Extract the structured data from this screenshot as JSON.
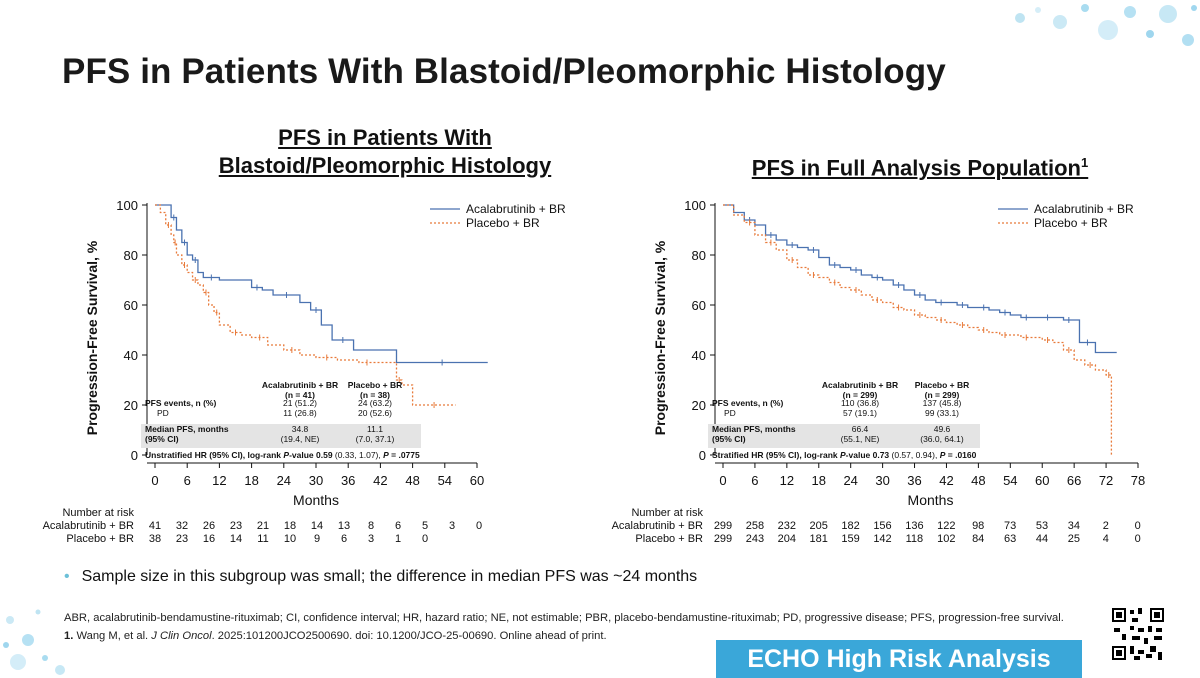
{
  "slide": {
    "title": "PFS in Patients With Blastoid/Pleomorphic Histology",
    "bullet": "Sample size in this subgroup was small; the difference in median PFS was ~24 months",
    "footnote1": "ABR, acalabrutinib-bendamustine-rituximab; CI, confidence interval; HR, hazard ratio; NE, not estimable; PBR, placebo-bendamustine-rituximab; PD, progressive disease; PFS, progression-free survival.",
    "ref_num": "1.",
    "ref_authors": " Wang M, et al. ",
    "ref_journal": "J Clin Oncol",
    "ref_rest": ". 2025:101200JCO2500690. doi: 10.1200/JCO-25-00690. Online ahead of print.",
    "badge": "ECHO High Risk Analysis"
  },
  "colors": {
    "acala": "#4a72b0",
    "placebo": "#e87a3a",
    "badge": "#3aa7d9",
    "accent": "#6cc0d8"
  },
  "icons": [
    "qr-code-icon",
    "bubble-decoration"
  ],
  "chart_data": [
    {
      "type": "line",
      "title_lines": [
        "PFS in Patients With",
        "Blastoid/Pleomorphic Histology"
      ],
      "xlabel": "Months",
      "ylabel": "Progression-Free Survival, %",
      "xlim": [
        0,
        60
      ],
      "ylim": [
        0,
        100
      ],
      "xticks": [
        0,
        6,
        12,
        18,
        24,
        30,
        36,
        42,
        48,
        54,
        60
      ],
      "yticks": [
        0,
        20,
        40,
        60,
        80,
        100
      ],
      "grid": false,
      "legend_position": "top-right",
      "series": [
        {
          "name": "Acalabrutinib + BR",
          "x": [
            0,
            2,
            3,
            4,
            5,
            6,
            7,
            8,
            9,
            12,
            18,
            20,
            22,
            27,
            29,
            31,
            33,
            37,
            45,
            62
          ],
          "y": [
            100,
            100,
            95,
            90,
            85,
            80,
            78,
            73,
            71,
            70,
            67,
            66,
            64,
            61,
            58,
            52,
            46,
            42,
            37,
            37
          ]
        },
        {
          "name": "Placebo + BR",
          "x": [
            0,
            1,
            2,
            3,
            3.5,
            4,
            5,
            6,
            7,
            8,
            9,
            10,
            11,
            12,
            14,
            16,
            18,
            21,
            24,
            27,
            30,
            34,
            38,
            41,
            45,
            46,
            48,
            56
          ],
          "y": [
            100,
            97,
            92,
            88,
            85,
            80,
            76,
            73,
            70,
            68,
            65,
            60,
            57,
            52,
            49,
            48,
            47,
            44,
            42,
            40,
            39,
            38,
            37,
            37,
            30,
            28,
            20,
            20
          ]
        }
      ],
      "table": {
        "headers": [
          "",
          "Acalabrutinib + BR\n(n = 41)",
          "Placebo + BR\n(n = 38)"
        ],
        "rows": [
          [
            "PFS events, n (%)",
            "21 (51.2)",
            "24 (63.2)"
          ],
          [
            "PD",
            "11 (26.8)",
            "20 (52.6)"
          ],
          [
            "Median PFS, months",
            "34.8",
            "11.1"
          ],
          [
            "(95% CI)",
            "(19.4, NE)",
            "(7.0, 37.1)"
          ]
        ],
        "hr_label": "Unstratified HR (95% CI), log-rank ",
        "hr_p_label": "P",
        "hr_p_suffix": "-value ",
        "hr_value": "0.59",
        "hr_ci": " (0.33, 1.07), ",
        "hr_p2": "P",
        "hr_pval": " = .0775"
      },
      "risk": {
        "header": "Number at risk",
        "rows": [
          {
            "label": "Acalabrutinib + BR",
            "values": [
              "41",
              "32",
              "26",
              "23",
              "21",
              "18",
              "14",
              "13",
              "8",
              "6",
              "5",
              "3",
              "0"
            ]
          },
          {
            "label": "Placebo + BR",
            "values": [
              "38",
              "23",
              "16",
              "14",
              "11",
              "10",
              "9",
              "6",
              "3",
              "1",
              "0"
            ]
          }
        ]
      }
    },
    {
      "type": "line",
      "title": "PFS in Full Analysis Population",
      "title_sup": "1",
      "xlabel": "Months",
      "ylabel": "Progression-Free Survival, %",
      "xlim": [
        0,
        78
      ],
      "ylim": [
        0,
        100
      ],
      "xticks": [
        0,
        6,
        12,
        18,
        24,
        30,
        36,
        42,
        48,
        54,
        60,
        66,
        72,
        78
      ],
      "yticks": [
        0,
        20,
        40,
        60,
        80,
        100
      ],
      "grid": false,
      "legend_position": "top-right",
      "series": [
        {
          "name": "Acalabrutinib + BR",
          "x": [
            0,
            2,
            4,
            6,
            8,
            10,
            12,
            14,
            16,
            18,
            20,
            22,
            24,
            26,
            28,
            30,
            32,
            34,
            36,
            38,
            40,
            42,
            44,
            46,
            48,
            50,
            52,
            54,
            56,
            58,
            60,
            62,
            64,
            66,
            67,
            70,
            74
          ],
          "y": [
            100,
            97,
            94,
            92,
            88,
            86,
            84,
            83,
            82,
            79,
            76,
            75,
            74,
            72,
            71,
            70,
            68,
            66,
            64,
            62,
            61,
            61,
            60,
            59,
            59,
            58,
            57,
            56,
            55,
            55,
            55,
            55,
            54,
            54,
            45,
            41,
            41
          ]
        },
        {
          "name": "Placebo + BR",
          "x": [
            0,
            2,
            4,
            6,
            8,
            10,
            12,
            14,
            16,
            18,
            20,
            22,
            24,
            26,
            28,
            30,
            32,
            34,
            36,
            38,
            40,
            42,
            44,
            46,
            48,
            50,
            52,
            54,
            56,
            58,
            60,
            62,
            64,
            66,
            68,
            70,
            72,
            73,
            73
          ],
          "y": [
            100,
            96,
            93,
            88,
            85,
            82,
            78,
            75,
            72,
            71,
            69,
            67,
            66,
            64,
            62,
            61,
            59,
            58,
            56,
            55,
            54,
            53,
            52,
            51,
            50,
            49,
            48,
            48,
            47,
            47,
            46,
            45,
            42,
            38,
            36,
            34,
            32,
            32,
            0
          ]
        }
      ],
      "table": {
        "headers": [
          "",
          "Acalabrutinib + BR\n(n = 299)",
          "Placebo + BR\n(n = 299)"
        ],
        "rows": [
          [
            "PFS events, n (%)",
            "110 (36.8)",
            "137 (45.8)"
          ],
          [
            "PD",
            "57 (19.1)",
            "99 (33.1)"
          ],
          [
            "Median PFS, months",
            "66.4",
            "49.6"
          ],
          [
            "(95% CI)",
            "(55.1, NE)",
            "(36.0, 64.1)"
          ]
        ],
        "hr_label": "Stratified HR (95% CI), log-rank ",
        "hr_p_label": "P",
        "hr_p_suffix": "-value ",
        "hr_value": "0.73",
        "hr_ci": " (0.57, 0.94), ",
        "hr_p2": "P",
        "hr_pval": " = .0160"
      },
      "risk": {
        "header": "Number at risk",
        "rows": [
          {
            "label": "Acalabrutinib + BR",
            "values": [
              "299",
              "258",
              "232",
              "205",
              "182",
              "156",
              "136",
              "122",
              "98",
              "73",
              "53",
              "34",
              "2",
              "0"
            ]
          },
          {
            "label": "Placebo + BR",
            "values": [
              "299",
              "243",
              "204",
              "181",
              "159",
              "142",
              "118",
              "102",
              "84",
              "63",
              "44",
              "25",
              "4",
              "0"
            ]
          }
        ]
      }
    }
  ]
}
